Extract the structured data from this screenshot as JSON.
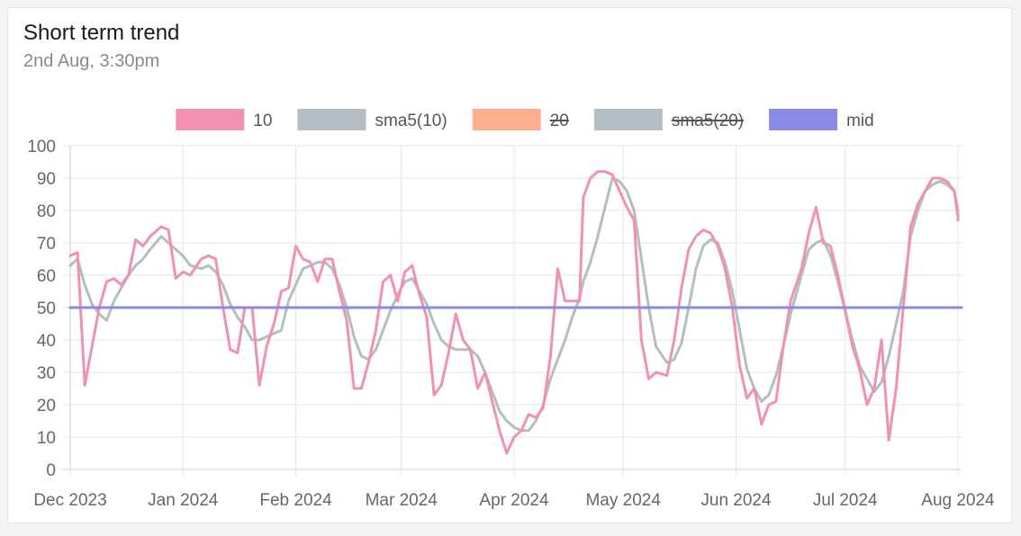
{
  "card": {
    "title": "Short term trend",
    "subtitle": "2nd Aug, 3:30pm"
  },
  "chart_data": {
    "type": "line",
    "title": "Short term trend",
    "subtitle": "2nd Aug, 3:30pm",
    "ylim": [
      0,
      100
    ],
    "y_ticks": [
      0,
      10,
      20,
      30,
      40,
      50,
      60,
      70,
      80,
      90,
      100
    ],
    "x_range": [
      "2023-12-01",
      "2024-08-02"
    ],
    "x_ticks": [
      {
        "label": "Dec 2023",
        "date": "2023-12-01"
      },
      {
        "label": "Jan 2024",
        "date": "2024-01-01"
      },
      {
        "label": "Feb 2024",
        "date": "2024-02-01"
      },
      {
        "label": "Mar 2024",
        "date": "2024-03-01"
      },
      {
        "label": "Apr 2024",
        "date": "2024-04-01"
      },
      {
        "label": "May 2024",
        "date": "2024-05-01"
      },
      {
        "label": "Jun 2024",
        "date": "2024-06-01"
      },
      {
        "label": "Jul 2024",
        "date": "2024-07-01"
      },
      {
        "label": "Aug 2024",
        "date": "2024-08-01"
      }
    ],
    "grid": true,
    "legend_position": "top",
    "series": [
      {
        "name": "10",
        "color": "#f190b3",
        "hidden": false,
        "points": [
          [
            "2023-12-01",
            66
          ],
          [
            "2023-12-03",
            67
          ],
          [
            "2023-12-05",
            26
          ],
          [
            "2023-12-07",
            38
          ],
          [
            "2023-12-09",
            50
          ],
          [
            "2023-12-11",
            58
          ],
          [
            "2023-12-13",
            59
          ],
          [
            "2023-12-15",
            57
          ],
          [
            "2023-12-17",
            60
          ],
          [
            "2023-12-19",
            71
          ],
          [
            "2023-12-21",
            69
          ],
          [
            "2023-12-23",
            72
          ],
          [
            "2023-12-26",
            75
          ],
          [
            "2023-12-28",
            74
          ],
          [
            "2023-12-30",
            59
          ],
          [
            "2024-01-01",
            61
          ],
          [
            "2024-01-03",
            60
          ],
          [
            "2024-01-06",
            65
          ],
          [
            "2024-01-08",
            66
          ],
          [
            "2024-01-10",
            65
          ],
          [
            "2024-01-12",
            50
          ],
          [
            "2024-01-14",
            37
          ],
          [
            "2024-01-16",
            36
          ],
          [
            "2024-01-18",
            50
          ],
          [
            "2024-01-20",
            50
          ],
          [
            "2024-01-22",
            26
          ],
          [
            "2024-01-24",
            38
          ],
          [
            "2024-01-26",
            45
          ],
          [
            "2024-01-28",
            55
          ],
          [
            "2024-01-30",
            56
          ],
          [
            "2024-02-01",
            69
          ],
          [
            "2024-02-03",
            65
          ],
          [
            "2024-02-05",
            64
          ],
          [
            "2024-02-07",
            58
          ],
          [
            "2024-02-09",
            65
          ],
          [
            "2024-02-11",
            65
          ],
          [
            "2024-02-13",
            55
          ],
          [
            "2024-02-15",
            46
          ],
          [
            "2024-02-17",
            25
          ],
          [
            "2024-02-19",
            25
          ],
          [
            "2024-02-21",
            33
          ],
          [
            "2024-02-23",
            43
          ],
          [
            "2024-02-25",
            58
          ],
          [
            "2024-02-27",
            60
          ],
          [
            "2024-02-29",
            52
          ],
          [
            "2024-03-02",
            61
          ],
          [
            "2024-03-04",
            63
          ],
          [
            "2024-03-06",
            54
          ],
          [
            "2024-03-08",
            47
          ],
          [
            "2024-03-10",
            23
          ],
          [
            "2024-03-12",
            26
          ],
          [
            "2024-03-14",
            36
          ],
          [
            "2024-03-16",
            48
          ],
          [
            "2024-03-18",
            40
          ],
          [
            "2024-03-20",
            37
          ],
          [
            "2024-03-22",
            25
          ],
          [
            "2024-03-24",
            30
          ],
          [
            "2024-03-26",
            21
          ],
          [
            "2024-03-28",
            12
          ],
          [
            "2024-03-30",
            5
          ],
          [
            "2024-04-01",
            10
          ],
          [
            "2024-04-03",
            12
          ],
          [
            "2024-04-05",
            17
          ],
          [
            "2024-04-07",
            16
          ],
          [
            "2024-04-09",
            19
          ],
          [
            "2024-04-11",
            35
          ],
          [
            "2024-04-13",
            62
          ],
          [
            "2024-04-15",
            52
          ],
          [
            "2024-04-17",
            52
          ],
          [
            "2024-04-19",
            52
          ],
          [
            "2024-04-20",
            84
          ],
          [
            "2024-04-22",
            90
          ],
          [
            "2024-04-24",
            92
          ],
          [
            "2024-04-26",
            92
          ],
          [
            "2024-04-28",
            91
          ],
          [
            "2024-04-30",
            86
          ],
          [
            "2024-05-02",
            81
          ],
          [
            "2024-05-04",
            77
          ],
          [
            "2024-05-06",
            40
          ],
          [
            "2024-05-08",
            28
          ],
          [
            "2024-05-10",
            30
          ],
          [
            "2024-05-13",
            29
          ],
          [
            "2024-05-15",
            40
          ],
          [
            "2024-05-17",
            56
          ],
          [
            "2024-05-19",
            68
          ],
          [
            "2024-05-21",
            72
          ],
          [
            "2024-05-23",
            74
          ],
          [
            "2024-05-25",
            73
          ],
          [
            "2024-05-27",
            69
          ],
          [
            "2024-05-29",
            62
          ],
          [
            "2024-05-31",
            50
          ],
          [
            "2024-06-02",
            32
          ],
          [
            "2024-06-04",
            22
          ],
          [
            "2024-06-06",
            25
          ],
          [
            "2024-06-08",
            14
          ],
          [
            "2024-06-10",
            20
          ],
          [
            "2024-06-12",
            21
          ],
          [
            "2024-06-14",
            38
          ],
          [
            "2024-06-16",
            52
          ],
          [
            "2024-06-19",
            62
          ],
          [
            "2024-06-21",
            73
          ],
          [
            "2024-06-23",
            81
          ],
          [
            "2024-06-25",
            70
          ],
          [
            "2024-06-27",
            69
          ],
          [
            "2024-06-29",
            60
          ],
          [
            "2024-07-01",
            49
          ],
          [
            "2024-07-03",
            38
          ],
          [
            "2024-07-05",
            31
          ],
          [
            "2024-07-07",
            20
          ],
          [
            "2024-07-09",
            25
          ],
          [
            "2024-07-11",
            40
          ],
          [
            "2024-07-13",
            9
          ],
          [
            "2024-07-15",
            25
          ],
          [
            "2024-07-17",
            50
          ],
          [
            "2024-07-19",
            75
          ],
          [
            "2024-07-21",
            82
          ],
          [
            "2024-07-23",
            86
          ],
          [
            "2024-07-25",
            90
          ],
          [
            "2024-07-27",
            90
          ],
          [
            "2024-07-29",
            89
          ],
          [
            "2024-07-31",
            86
          ],
          [
            "2024-08-01",
            78
          ],
          [
            "2024-08-01",
            77
          ]
        ]
      },
      {
        "name": "sma5(10)",
        "color": "#b2bec4",
        "hidden": false,
        "points": [
          [
            "2023-12-01",
            63
          ],
          [
            "2023-12-03",
            65
          ],
          [
            "2023-12-05",
            57
          ],
          [
            "2023-12-07",
            51
          ],
          [
            "2023-12-09",
            48
          ],
          [
            "2023-12-11",
            46
          ],
          [
            "2023-12-13",
            52
          ],
          [
            "2023-12-15",
            56
          ],
          [
            "2023-12-17",
            60
          ],
          [
            "2023-12-19",
            63
          ],
          [
            "2023-12-21",
            65
          ],
          [
            "2023-12-23",
            68
          ],
          [
            "2023-12-26",
            72
          ],
          [
            "2023-12-28",
            70
          ],
          [
            "2023-12-30",
            68
          ],
          [
            "2024-01-01",
            66
          ],
          [
            "2024-01-03",
            63
          ],
          [
            "2024-01-06",
            62
          ],
          [
            "2024-01-08",
            63
          ],
          [
            "2024-01-10",
            61
          ],
          [
            "2024-01-12",
            57
          ],
          [
            "2024-01-14",
            51
          ],
          [
            "2024-01-16",
            47
          ],
          [
            "2024-01-18",
            44
          ],
          [
            "2024-01-20",
            40
          ],
          [
            "2024-01-22",
            40
          ],
          [
            "2024-01-24",
            41
          ],
          [
            "2024-01-26",
            42
          ],
          [
            "2024-01-28",
            43
          ],
          [
            "2024-01-30",
            52
          ],
          [
            "2024-02-01",
            57
          ],
          [
            "2024-02-03",
            62
          ],
          [
            "2024-02-05",
            63
          ],
          [
            "2024-02-07",
            64
          ],
          [
            "2024-02-09",
            64
          ],
          [
            "2024-02-11",
            62
          ],
          [
            "2024-02-13",
            57
          ],
          [
            "2024-02-15",
            50
          ],
          [
            "2024-02-17",
            41
          ],
          [
            "2024-02-19",
            35
          ],
          [
            "2024-02-21",
            34
          ],
          [
            "2024-02-23",
            37
          ],
          [
            "2024-02-25",
            43
          ],
          [
            "2024-02-27",
            49
          ],
          [
            "2024-02-29",
            54
          ],
          [
            "2024-03-02",
            58
          ],
          [
            "2024-03-04",
            59
          ],
          [
            "2024-03-06",
            55
          ],
          [
            "2024-03-08",
            51
          ],
          [
            "2024-03-10",
            45
          ],
          [
            "2024-03-12",
            40
          ],
          [
            "2024-03-14",
            38
          ],
          [
            "2024-03-16",
            37
          ],
          [
            "2024-03-18",
            37
          ],
          [
            "2024-03-20",
            37
          ],
          [
            "2024-03-22",
            35
          ],
          [
            "2024-03-24",
            30
          ],
          [
            "2024-03-26",
            24
          ],
          [
            "2024-03-28",
            18
          ],
          [
            "2024-03-30",
            15
          ],
          [
            "2024-04-01",
            13
          ],
          [
            "2024-04-03",
            12
          ],
          [
            "2024-04-05",
            12
          ],
          [
            "2024-04-07",
            15
          ],
          [
            "2024-04-09",
            20
          ],
          [
            "2024-04-11",
            28
          ],
          [
            "2024-04-13",
            34
          ],
          [
            "2024-04-15",
            40
          ],
          [
            "2024-04-17",
            47
          ],
          [
            "2024-04-19",
            53
          ],
          [
            "2024-04-20",
            58
          ],
          [
            "2024-04-22",
            64
          ],
          [
            "2024-04-24",
            72
          ],
          [
            "2024-04-26",
            81
          ],
          [
            "2024-04-28",
            90
          ],
          [
            "2024-04-30",
            89
          ],
          [
            "2024-05-02",
            86
          ],
          [
            "2024-05-04",
            80
          ],
          [
            "2024-05-06",
            65
          ],
          [
            "2024-05-08",
            50
          ],
          [
            "2024-05-10",
            38
          ],
          [
            "2024-05-13",
            33
          ],
          [
            "2024-05-15",
            34
          ],
          [
            "2024-05-17",
            39
          ],
          [
            "2024-05-19",
            50
          ],
          [
            "2024-05-21",
            62
          ],
          [
            "2024-05-23",
            69
          ],
          [
            "2024-05-25",
            71
          ],
          [
            "2024-05-27",
            70
          ],
          [
            "2024-05-29",
            64
          ],
          [
            "2024-05-31",
            55
          ],
          [
            "2024-06-02",
            43
          ],
          [
            "2024-06-04",
            31
          ],
          [
            "2024-06-06",
            25
          ],
          [
            "2024-06-08",
            21
          ],
          [
            "2024-06-10",
            23
          ],
          [
            "2024-06-12",
            29
          ],
          [
            "2024-06-14",
            38
          ],
          [
            "2024-06-16",
            48
          ],
          [
            "2024-06-19",
            60
          ],
          [
            "2024-06-21",
            68
          ],
          [
            "2024-06-23",
            70
          ],
          [
            "2024-06-25",
            71
          ],
          [
            "2024-06-27",
            66
          ],
          [
            "2024-06-29",
            58
          ],
          [
            "2024-07-01",
            49
          ],
          [
            "2024-07-03",
            40
          ],
          [
            "2024-07-05",
            32
          ],
          [
            "2024-07-07",
            28
          ],
          [
            "2024-07-09",
            24
          ],
          [
            "2024-07-11",
            27
          ],
          [
            "2024-07-13",
            35
          ],
          [
            "2024-07-15",
            45
          ],
          [
            "2024-07-17",
            55
          ],
          [
            "2024-07-19",
            72
          ],
          [
            "2024-07-21",
            80
          ],
          [
            "2024-07-23",
            86
          ],
          [
            "2024-07-25",
            88
          ],
          [
            "2024-07-27",
            89
          ],
          [
            "2024-07-29",
            88
          ],
          [
            "2024-07-31",
            86
          ],
          [
            "2024-08-01",
            80
          ],
          [
            "2024-08-01",
            78
          ]
        ]
      },
      {
        "name": "20",
        "color": "#ffad8f",
        "hidden": true,
        "points": []
      },
      {
        "name": "sma5(20)",
        "color": "#b2bec4",
        "hidden": true,
        "points": []
      },
      {
        "name": "mid",
        "color": "#8a8ae8",
        "hidden": false,
        "points": [
          [
            "2023-12-01",
            50
          ],
          [
            "2024-08-02",
            50
          ]
        ]
      }
    ]
  }
}
